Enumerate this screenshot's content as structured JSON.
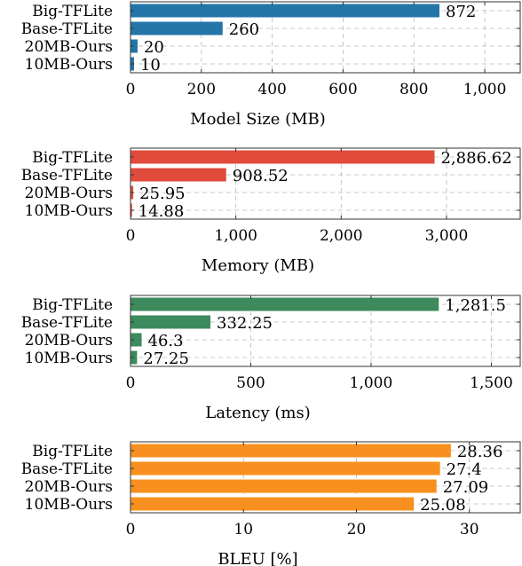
{
  "chart_data": [
    {
      "type": "bar",
      "orientation": "horizontal",
      "categories": [
        "Big-TFLite",
        "Base-TFLite",
        "20MB-Ours",
        "10MB-Ours"
      ],
      "values": [
        872,
        260,
        20,
        10
      ],
      "value_labels": [
        "872",
        "260",
        "20",
        "10"
      ],
      "xlabel": "Model Size (MB)",
      "xlim": [
        0,
        1100
      ],
      "xticks": [
        0,
        200,
        400,
        600,
        800,
        1000
      ],
      "xtick_labels": [
        "0",
        "200",
        "400",
        "600",
        "800",
        "1,000"
      ],
      "color": "#2475a8",
      "grid": true
    },
    {
      "type": "bar",
      "orientation": "horizontal",
      "categories": [
        "Big-TFLite",
        "Base-TFLite",
        "20MB-Ours",
        "10MB-Ours"
      ],
      "values": [
        2886.62,
        908.52,
        25.95,
        14.88
      ],
      "value_labels": [
        "2,886.62",
        "908.52",
        "25.95",
        "14.88"
      ],
      "xlabel": "Memory (MB)",
      "xlim": [
        0,
        3700
      ],
      "xticks": [
        0,
        1000,
        2000,
        3000
      ],
      "xtick_labels": [
        "0",
        "1,000",
        "2,000",
        "3,000"
      ],
      "color": "#e04b3c",
      "grid": true
    },
    {
      "type": "bar",
      "orientation": "horizontal",
      "categories": [
        "Big-TFLite",
        "Base-TFLite",
        "20MB-Ours",
        "10MB-Ours"
      ],
      "values": [
        1281.5,
        332.25,
        46.3,
        27.25
      ],
      "value_labels": [
        "1,281.5",
        "332.25",
        "46.3",
        "27.25"
      ],
      "xlabel": "Latency (ms)",
      "xlim": [
        0,
        1620
      ],
      "xticks": [
        0,
        500,
        1000,
        1500
      ],
      "xtick_labels": [
        "0",
        "500",
        "1,000",
        "1,500"
      ],
      "color": "#3d8a5c",
      "grid": true
    },
    {
      "type": "bar",
      "orientation": "horizontal",
      "categories": [
        "Big-TFLite",
        "Base-TFLite",
        "20MB-Ours",
        "10MB-Ours"
      ],
      "values": [
        28.36,
        27.4,
        27.09,
        25.08
      ],
      "value_labels": [
        "28.36",
        "27.4",
        "27.09",
        "25.08"
      ],
      "xlabel": "BLEU [%]",
      "xlim": [
        0,
        34.5
      ],
      "xticks": [
        0,
        10,
        20,
        30
      ],
      "xtick_labels": [
        "0",
        "10",
        "20",
        "30"
      ],
      "color": "#f7901e",
      "grid": true
    }
  ]
}
